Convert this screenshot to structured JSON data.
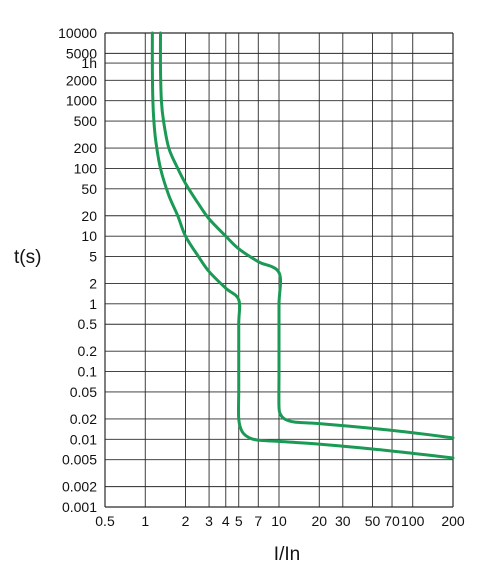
{
  "chart_data": {
    "type": "line",
    "title": "",
    "xlabel": "I/In",
    "ylabel": "t(s)",
    "x_scale": "log",
    "y_scale": "log",
    "xlim": [
      0.5,
      200
    ],
    "ylim": [
      0.001,
      10000
    ],
    "grid": true,
    "legend": "none",
    "colors": {
      "curve": "#1a9a55",
      "grid": "#2a2a2a",
      "text": "#111111",
      "background": "#ffffff"
    },
    "x_ticks": [
      {
        "label": "0.5",
        "value": 0.5
      },
      {
        "label": "1",
        "value": 1
      },
      {
        "label": "2",
        "value": 2
      },
      {
        "label": "3",
        "value": 3
      },
      {
        "label": "4",
        "value": 4
      },
      {
        "label": "5",
        "value": 5
      },
      {
        "label": "7",
        "value": 7
      },
      {
        "label": "10",
        "value": 10
      },
      {
        "label": "20",
        "value": 20
      },
      {
        "label": "30",
        "value": 30
      },
      {
        "label": "50",
        "value": 50
      },
      {
        "label": "70",
        "value": 70
      },
      {
        "label": "100",
        "value": 100
      },
      {
        "label": "200",
        "value": 200
      }
    ],
    "y_ticks": [
      {
        "label": "10000",
        "value": 10000
      },
      {
        "label": "5000",
        "value": 5000
      },
      {
        "label": "1h",
        "value": 3600
      },
      {
        "label": "2000",
        "value": 2000
      },
      {
        "label": "1000",
        "value": 1000
      },
      {
        "label": "500",
        "value": 500
      },
      {
        "label": "200",
        "value": 200
      },
      {
        "label": "100",
        "value": 100
      },
      {
        "label": "50",
        "value": 50
      },
      {
        "label": "20",
        "value": 20
      },
      {
        "label": "10",
        "value": 10
      },
      {
        "label": "5",
        "value": 5
      },
      {
        "label": "2",
        "value": 2
      },
      {
        "label": "1",
        "value": 1
      },
      {
        "label": "0.5",
        "value": 0.5
      },
      {
        "label": "0.2",
        "value": 0.2
      },
      {
        "label": "0.1",
        "value": 0.1
      },
      {
        "label": "0.05",
        "value": 0.05
      },
      {
        "label": "0.02",
        "value": 0.02
      },
      {
        "label": "0.01",
        "value": 0.01
      },
      {
        "label": "0.005",
        "value": 0.005
      },
      {
        "label": "0.002",
        "value": 0.002
      },
      {
        "label": "0.001",
        "value": 0.001
      }
    ],
    "series": [
      {
        "points": [
          [
            1.13,
            10000
          ],
          [
            1.13,
            3000
          ],
          [
            1.14,
            1000
          ],
          [
            1.16,
            500
          ],
          [
            1.2,
            250
          ],
          [
            1.3,
            100
          ],
          [
            1.5,
            40
          ],
          [
            1.75,
            20
          ],
          [
            2.0,
            10
          ],
          [
            2.5,
            5
          ],
          [
            3.0,
            3
          ],
          [
            4.0,
            1.7
          ],
          [
            5.0,
            1.15
          ],
          [
            5.0,
            0.5
          ],
          [
            5.0,
            0.1
          ],
          [
            5.0,
            0.05
          ],
          [
            5.0,
            0.02
          ],
          [
            5.3,
            0.013
          ],
          [
            6.0,
            0.0105
          ],
          [
            7.0,
            0.0097
          ],
          [
            10,
            0.0093
          ],
          [
            20,
            0.0085
          ],
          [
            50,
            0.0072
          ],
          [
            100,
            0.0062
          ],
          [
            200,
            0.0053
          ]
        ]
      },
      {
        "points": [
          [
            1.3,
            10000
          ],
          [
            1.3,
            3000
          ],
          [
            1.32,
            1000
          ],
          [
            1.37,
            500
          ],
          [
            1.5,
            200
          ],
          [
            1.75,
            100
          ],
          [
            2.0,
            60
          ],
          [
            2.5,
            30
          ],
          [
            3.0,
            18
          ],
          [
            4.0,
            10
          ],
          [
            5.0,
            6.5
          ],
          [
            7.0,
            4.2
          ],
          [
            10.0,
            2.9
          ],
          [
            10.0,
            1
          ],
          [
            10.0,
            0.3
          ],
          [
            10.0,
            0.1
          ],
          [
            10.0,
            0.03
          ],
          [
            10.3,
            0.023
          ],
          [
            11.0,
            0.02
          ],
          [
            13,
            0.018
          ],
          [
            20,
            0.017
          ],
          [
            50,
            0.0145
          ],
          [
            100,
            0.0125
          ],
          [
            200,
            0.0105
          ]
        ]
      }
    ]
  }
}
